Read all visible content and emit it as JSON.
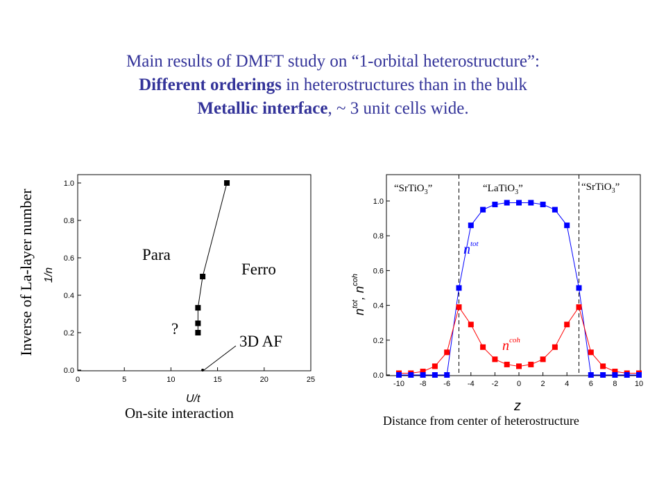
{
  "title": {
    "line1": "Main results of DMFT study on “1-orbital heterostructure”:",
    "line2_bold": "Different orderings",
    "line2_rest": " in heterostructures than in the bulk",
    "line3_bold": "Metallic interface",
    "line3_rest": ", ~ 3 unit cells wide."
  },
  "captions": {
    "left_y": "Inverse of La-layer number",
    "left_x": "On-site interaction",
    "right_x": "Distance from center of heterostructure"
  },
  "chart_data": [
    {
      "type": "line",
      "xlabel": "U/t",
      "ylabel": "1/n",
      "xlim": [
        0,
        25
      ],
      "ylim": [
        0,
        1.05
      ],
      "xticks": [
        "0",
        "5",
        "10",
        "15",
        "20",
        "25"
      ],
      "yticks": [
        "0.0",
        "0.2",
        "0.4",
        "0.6",
        "0.8",
        "1.0"
      ],
      "series": [
        {
          "points": [
            [
              13.4,
              0.0
            ],
            [
              12.9,
              0.2
            ],
            [
              12.9,
              0.25
            ],
            [
              12.9,
              0.333
            ],
            [
              13.4,
              0.5
            ],
            [
              16.0,
              1.0
            ]
          ]
        }
      ],
      "annotations": [
        "Para",
        "Ferro",
        "?",
        "3D AF"
      ],
      "grid": false
    },
    {
      "type": "line",
      "xlabel": "z",
      "ylabel": "n^tot, n^coh",
      "xlim": [
        -10,
        10
      ],
      "ylim": [
        0,
        1.15
      ],
      "xticks": [
        "-10",
        "-8",
        "-6",
        "-4",
        "-2",
        "0",
        "2",
        "4",
        "6",
        "8",
        "10"
      ],
      "yticks": [
        "0.0",
        "0.2",
        "0.4",
        "0.6",
        "0.8",
        "1.0"
      ],
      "region_labels": [
        "“SrTiO3”",
        "“LaTiO3”",
        "“SrTiO3”"
      ],
      "dividers_x": [
        -5,
        5
      ],
      "series": [
        {
          "name": "n^tot",
          "color": "#0000ff",
          "x": [
            -10,
            -9,
            -8,
            -7,
            -6,
            -5,
            -4,
            -3,
            -2,
            -1,
            0,
            1,
            2,
            3,
            4,
            5,
            6,
            7,
            8,
            9,
            10
          ],
          "y": [
            0.0,
            0.0,
            0.0,
            0.0,
            0.0,
            0.5,
            0.86,
            0.95,
            0.98,
            0.99,
            0.99,
            0.99,
            0.98,
            0.95,
            0.86,
            0.5,
            0.0,
            0.0,
            0.0,
            0.0,
            0.0
          ]
        },
        {
          "name": "n^coh",
          "color": "#ff0000",
          "x": [
            -10,
            -9,
            -8,
            -7,
            -6,
            -5,
            -4,
            -3,
            -2,
            -1,
            0,
            1,
            2,
            3,
            4,
            5,
            6,
            7,
            8,
            9,
            10
          ],
          "y": [
            0.01,
            0.01,
            0.02,
            0.05,
            0.13,
            0.39,
            0.29,
            0.16,
            0.09,
            0.06,
            0.05,
            0.06,
            0.09,
            0.16,
            0.29,
            0.39,
            0.13,
            0.05,
            0.02,
            0.01,
            0.01
          ]
        }
      ],
      "grid": false
    }
  ]
}
